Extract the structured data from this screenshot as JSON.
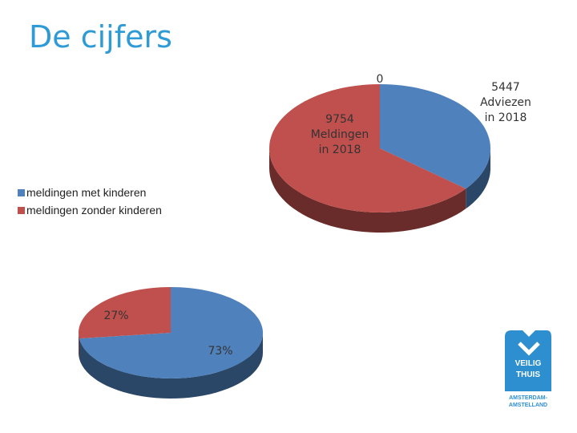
{
  "title": "De cijfers",
  "chart_data": [
    {
      "type": "pie3d",
      "categories": [
        null,
        null,
        null
      ],
      "values": [
        0,
        5447,
        9754
      ],
      "value_labels": [
        "0",
        "5447 Adviezen in 2018",
        "9754 Meldingen in 2018"
      ],
      "colors": [
        "#4f81bd",
        "#4f81bd",
        "#c0504d"
      ]
    },
    {
      "type": "pie3d",
      "categories": [
        "meldingen met kinderen",
        "meldingen zonder kinderen"
      ],
      "values": [
        73,
        27
      ],
      "value_labels": [
        "73%",
        "27%"
      ],
      "colors": [
        "#4f81bd",
        "#c0504d"
      ],
      "legend": "left"
    }
  ],
  "logo": {
    "lines": [
      "VEILIG",
      "THUIS"
    ],
    "sub": [
      "AMSTERDAM-",
      "AMSTELLAND"
    ]
  }
}
